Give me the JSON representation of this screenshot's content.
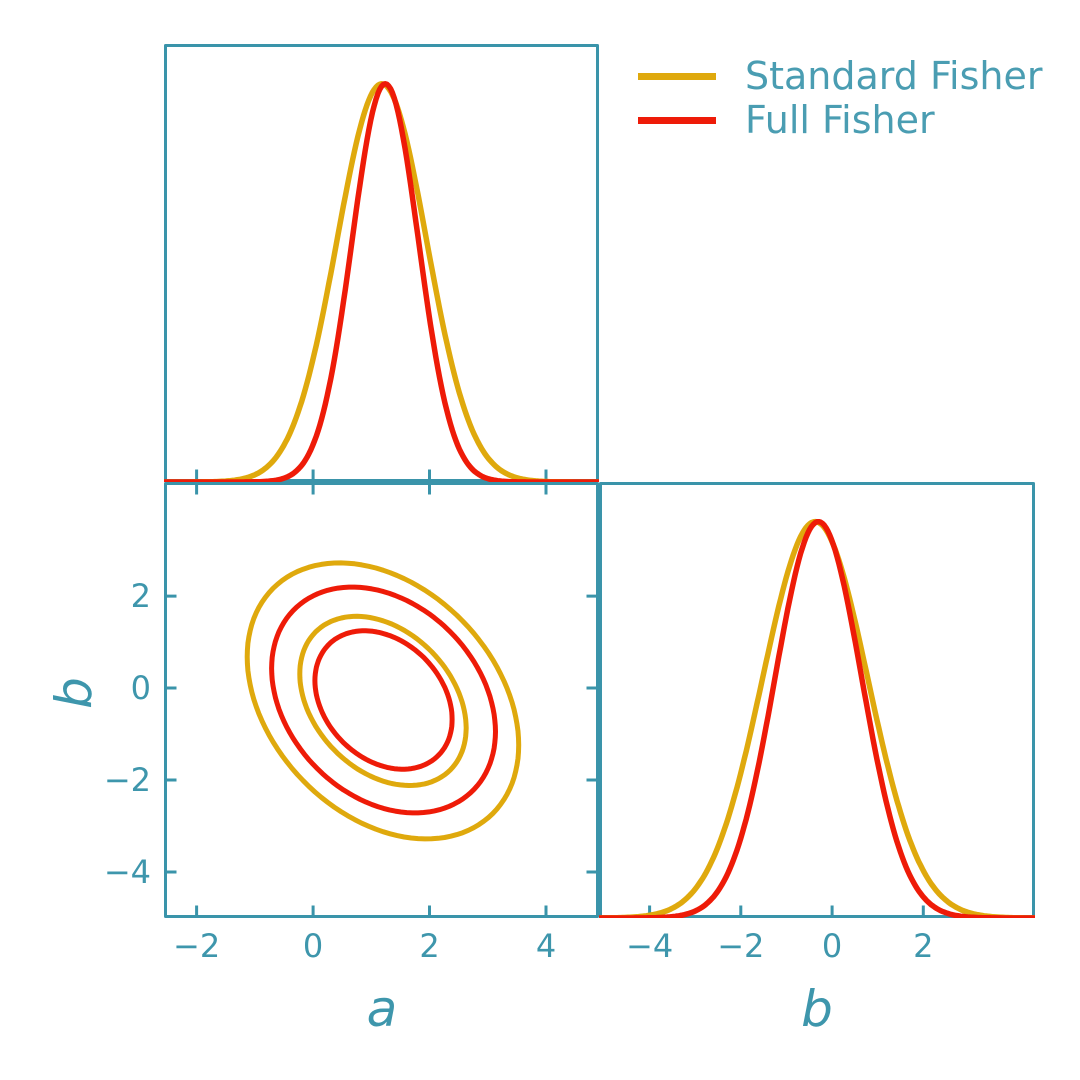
{
  "figure": {
    "background": "#ffffff"
  },
  "colors": {
    "axis": "#3A94AA",
    "tick_label": "#3E96AC",
    "legend_text": "#4A9DB2",
    "standard_fisher": "#DFA90D",
    "full_fisher": "#EE1B08"
  },
  "legend": {
    "items": [
      {
        "label": "Standard Fisher",
        "color": "#DFA90D"
      },
      {
        "label": "Full Fisher",
        "color": "#EE1B08"
      }
    ]
  },
  "axes": {
    "a_label": "a",
    "b_label": "b"
  },
  "chart_data": [
    {
      "id": "marginal_a",
      "type": "line",
      "title": "1D marginal posterior for parameter a",
      "xlabel": "a",
      "ylabel": "",
      "xlim": [
        -2.56,
        4.91
      ],
      "ylim": [
        0,
        1.1
      ],
      "xticks": [
        -2,
        0,
        2,
        4
      ],
      "xtick_labels_visible": false,
      "grid": false,
      "series": [
        {
          "name": "Standard Fisher",
          "color": "#DFA90D",
          "shape": "gaussian",
          "mean": 1.18,
          "sigma": 0.77,
          "peak": 1.0
        },
        {
          "name": "Full Fisher",
          "color": "#EE1B08",
          "shape": "gaussian",
          "mean": 1.24,
          "sigma": 0.57,
          "peak": 1.0
        }
      ]
    },
    {
      "id": "joint_ab",
      "type": "contour",
      "title": "Joint 68% and 95% confidence contours for (a, b)",
      "xlabel": "a",
      "ylabel": "b",
      "xlim": [
        -2.56,
        4.91
      ],
      "ylim": [
        -5.0,
        4.48
      ],
      "xticks": [
        -2,
        0,
        2,
        4
      ],
      "yticks": [
        2,
        0,
        -2,
        -4
      ],
      "xtick_labels_visible": true,
      "ytick_labels_visible": true,
      "grid": false,
      "series": [
        {
          "name": "Standard Fisher",
          "color": "#DFA90D",
          "center": [
            1.2,
            -0.28
          ],
          "sigma": [
            0.94,
            1.21
          ],
          "rho": -0.32,
          "levels": [
            1.52,
            2.48
          ]
        },
        {
          "name": "Full Fisher",
          "color": "#EE1B08",
          "center": [
            1.21,
            -0.26
          ],
          "sigma": [
            0.775,
            0.99
          ],
          "rho": -0.28,
          "levels": [
            1.52,
            2.48
          ]
        }
      ]
    },
    {
      "id": "marginal_b",
      "type": "line",
      "title": "1D marginal posterior for parameter b",
      "xlabel": "b",
      "ylabel": "",
      "xlim": [
        -5.11,
        4.45
      ],
      "ylim": [
        0,
        1.1
      ],
      "xticks": [
        -4,
        -2,
        0,
        2
      ],
      "xtick_labels_visible": true,
      "grid": false,
      "series": [
        {
          "name": "Standard Fisher",
          "color": "#DFA90D",
          "shape": "gaussian",
          "mean": -0.37,
          "sigma": 1.15,
          "peak": 1.0
        },
        {
          "name": "Full Fisher",
          "color": "#EE1B08",
          "shape": "gaussian",
          "mean": -0.3,
          "sigma": 0.95,
          "peak": 1.0
        }
      ]
    }
  ]
}
